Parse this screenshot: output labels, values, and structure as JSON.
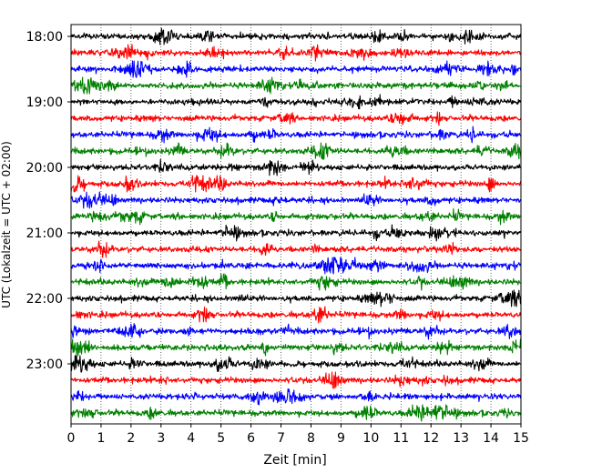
{
  "chart_data": {
    "type": "line",
    "xlabel": "Zeit  [min]",
    "ylabel": "UTC (Lokalzeit = UTC + 02:00)",
    "xlim": [
      0,
      15
    ],
    "x_ticks": [
      "0",
      "1",
      "2",
      "3",
      "4",
      "5",
      "6",
      "7",
      "8",
      "9",
      "10",
      "11",
      "12",
      "13",
      "14",
      "15"
    ],
    "y_ticks": [
      "18:00",
      "19:00",
      "20:00",
      "21:00",
      "22:00",
      "23:00"
    ],
    "grid": "x-dotted",
    "trace_interval_minutes": 15,
    "start_time": "18:00",
    "end_time": "23:45",
    "color_cycle": [
      "#000000",
      "#ff0000",
      "#0000ff",
      "#008000"
    ],
    "series": [
      {
        "time": "18:00",
        "color": "#000000"
      },
      {
        "time": "18:15",
        "color": "#ff0000"
      },
      {
        "time": "18:30",
        "color": "#0000ff"
      },
      {
        "time": "18:45",
        "color": "#008000"
      },
      {
        "time": "19:00",
        "color": "#000000"
      },
      {
        "time": "19:15",
        "color": "#ff0000"
      },
      {
        "time": "19:30",
        "color": "#0000ff"
      },
      {
        "time": "19:45",
        "color": "#008000"
      },
      {
        "time": "20:00",
        "color": "#000000"
      },
      {
        "time": "20:15",
        "color": "#ff0000"
      },
      {
        "time": "20:30",
        "color": "#0000ff"
      },
      {
        "time": "20:45",
        "color": "#008000"
      },
      {
        "time": "21:00",
        "color": "#000000"
      },
      {
        "time": "21:15",
        "color": "#ff0000"
      },
      {
        "time": "21:30",
        "color": "#0000ff"
      },
      {
        "time": "21:45",
        "color": "#008000"
      },
      {
        "time": "22:00",
        "color": "#000000"
      },
      {
        "time": "22:15",
        "color": "#ff0000"
      },
      {
        "time": "22:30",
        "color": "#0000ff"
      },
      {
        "time": "22:45",
        "color": "#008000"
      },
      {
        "time": "23:00",
        "color": "#000000"
      },
      {
        "time": "23:15",
        "color": "#ff0000"
      },
      {
        "time": "23:30",
        "color": "#0000ff"
      },
      {
        "time": "23:45",
        "color": "#008000"
      }
    ]
  }
}
